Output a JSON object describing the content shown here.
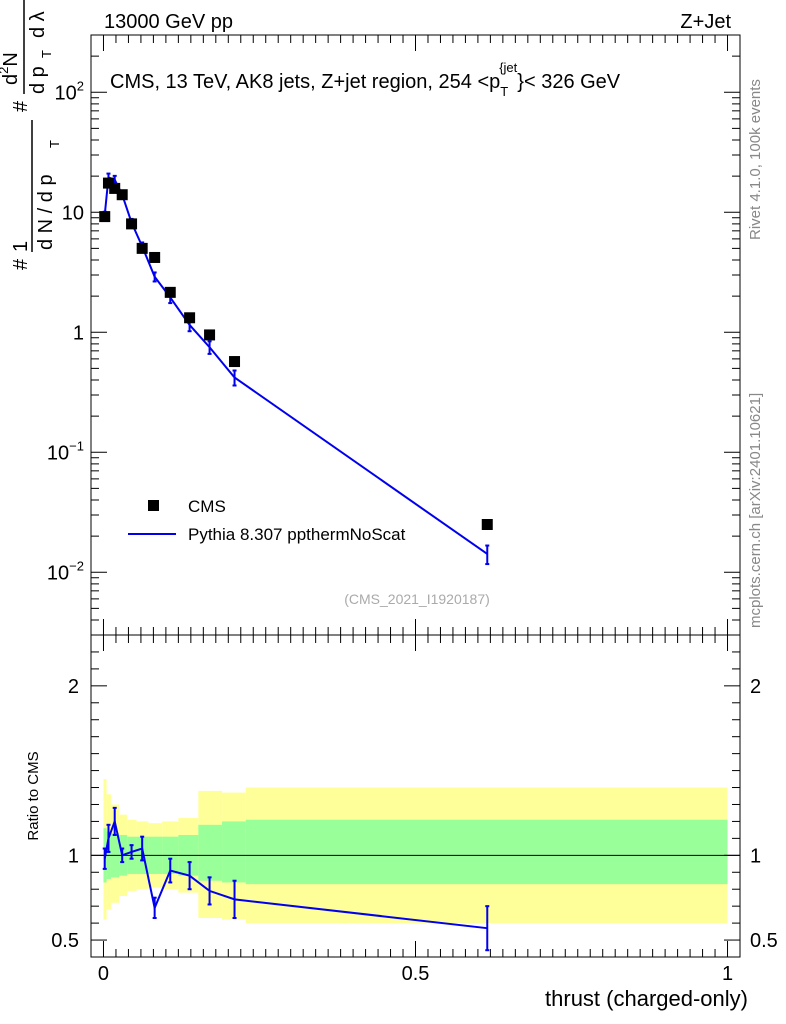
{
  "header": {
    "left_label": "13000 GeV pp",
    "right_label": "Z+Jet"
  },
  "side_labels": {
    "rivet": "Rivet 4.1.0,  100k events",
    "mcplots": "mcplots.cern.ch [arXiv:2401.10621]"
  },
  "analysis_id": "(CMS_2021_I1920187)",
  "colors": {
    "pythia": "#0000ee",
    "band_inner": "#99ff99",
    "band_outer": "#ffff99",
    "data": "#000000"
  },
  "chart_data": [
    {
      "type": "scatter",
      "title": "CMS, 13 TeV, AK8 jets, Z+jet region, 254 <p_T^{jet}< 326 GeV",
      "title_parts": {
        "main": "CMS, 13 TeV, AK8 jets, Z+jet region, 254 <p",
        "sub": "T",
        "sup": "{jet",
        "tail": "}< 326 GeV"
      },
      "ylabel": "1/(dN/dp_T) d²N/(dp_T dλ)",
      "ylabel_parts": {
        "hash": "#",
        "one": "1",
        "dn": "d N / d p",
        "d2n": "d",
        "two": "2",
        "n": "N",
        "dpt": "d p",
        "t": "T",
        "dlambda": "d λ"
      },
      "yscale": "log",
      "xlim": [
        -0.02,
        1.02
      ],
      "ylim": [
        0.003,
        300
      ],
      "y_tick_labels": [
        {
          "value": 0.01,
          "base": "10",
          "exp": "−2"
        },
        {
          "value": 0.1,
          "base": "10",
          "exp": "−1"
        },
        {
          "value": 1,
          "label": "1"
        },
        {
          "value": 10,
          "label": "10"
        },
        {
          "value": 100,
          "base": "10",
          "exp": "2"
        }
      ],
      "legend": {
        "position": "bottom-left",
        "entries": [
          "CMS",
          "Pythia 8.307 ppthermNoScat"
        ]
      },
      "series": [
        {
          "name": "CMS",
          "marker": "square",
          "x": [
            0.002,
            0.008,
            0.018,
            0.03,
            0.045,
            0.062,
            0.082,
            0.107,
            0.138,
            0.17,
            0.21,
            0.615
          ],
          "y": [
            9.2,
            17.5,
            15.8,
            14.0,
            8.0,
            5.0,
            4.2,
            2.15,
            1.32,
            0.95,
            0.57,
            0.025
          ]
        },
        {
          "name": "Pythia 8.307 ppthermNoScat",
          "marker": "line",
          "x": [
            0.002,
            0.008,
            0.018,
            0.03,
            0.045,
            0.062,
            0.082,
            0.107,
            0.138,
            0.17,
            0.21,
            0.615
          ],
          "y": [
            9.5,
            19.5,
            18.7,
            14.0,
            8.2,
            5.2,
            2.9,
            1.95,
            1.15,
            0.75,
            0.42,
            0.0142
          ],
          "yerr": [
            0.6,
            1.5,
            1.4,
            1.0,
            0.6,
            0.4,
            0.25,
            0.2,
            0.13,
            0.09,
            0.06,
            0.0025
          ]
        }
      ]
    },
    {
      "type": "line",
      "ylabel": "Ratio to CMS",
      "xlabel": "thrust (charged-only)",
      "xlim": [
        -0.02,
        1.02
      ],
      "ylim": [
        0.4,
        2.3
      ],
      "x_ticks": [
        0,
        0.5,
        1
      ],
      "x_tick_labels": [
        "0",
        "0.5",
        "1"
      ],
      "y_ticks": [
        0.5,
        1,
        2
      ],
      "y_tick_labels": [
        "0.5",
        "1",
        "2"
      ],
      "bands": [
        {
          "xlo": 0.0,
          "xhi": 0.005,
          "in_lo": 0.84,
          "in_hi": 1.16,
          "out_lo": 0.62,
          "out_hi": 1.45
        },
        {
          "xlo": 0.005,
          "xhi": 0.012,
          "in_lo": 0.86,
          "in_hi": 1.14,
          "out_lo": 0.68,
          "out_hi": 1.36
        },
        {
          "xlo": 0.012,
          "xhi": 0.025,
          "in_lo": 0.87,
          "in_hi": 1.13,
          "out_lo": 0.72,
          "out_hi": 1.3
        },
        {
          "xlo": 0.025,
          "xhi": 0.038,
          "in_lo": 0.88,
          "in_hi": 1.12,
          "out_lo": 0.76,
          "out_hi": 1.24
        },
        {
          "xlo": 0.038,
          "xhi": 0.053,
          "in_lo": 0.89,
          "in_hi": 1.11,
          "out_lo": 0.79,
          "out_hi": 1.21
        },
        {
          "xlo": 0.053,
          "xhi": 0.072,
          "in_lo": 0.89,
          "in_hi": 1.11,
          "out_lo": 0.8,
          "out_hi": 1.2
        },
        {
          "xlo": 0.072,
          "xhi": 0.094,
          "in_lo": 0.89,
          "in_hi": 1.11,
          "out_lo": 0.81,
          "out_hi": 1.19
        },
        {
          "xlo": 0.094,
          "xhi": 0.12,
          "in_lo": 0.89,
          "in_hi": 1.11,
          "out_lo": 0.8,
          "out_hi": 1.2
        },
        {
          "xlo": 0.12,
          "xhi": 0.152,
          "in_lo": 0.88,
          "in_hi": 1.12,
          "out_lo": 0.78,
          "out_hi": 1.22
        },
        {
          "xlo": 0.152,
          "xhi": 0.19,
          "in_lo": 0.85,
          "in_hi": 1.18,
          "out_lo": 0.63,
          "out_hi": 1.38
        },
        {
          "xlo": 0.19,
          "xhi": 0.228,
          "in_lo": 0.84,
          "in_hi": 1.2,
          "out_lo": 0.62,
          "out_hi": 1.37
        },
        {
          "xlo": 0.228,
          "xhi": 1.0,
          "in_lo": 0.83,
          "in_hi": 1.21,
          "out_lo": 0.6,
          "out_hi": 1.4
        }
      ],
      "series": [
        {
          "name": "Pythia 8.307 ppthermNoScat",
          "x": [
            0.002,
            0.008,
            0.018,
            0.03,
            0.045,
            0.062,
            0.082,
            0.107,
            0.138,
            0.17,
            0.21,
            0.615
          ],
          "y": [
            0.98,
            1.1,
            1.2,
            1.0,
            1.02,
            1.04,
            0.69,
            0.91,
            0.88,
            0.79,
            0.74,
            0.57
          ],
          "yerr": [
            0.06,
            0.08,
            0.08,
            0.04,
            0.04,
            0.07,
            0.06,
            0.07,
            0.08,
            0.08,
            0.11,
            0.13
          ]
        }
      ],
      "reference_line": 1.0
    }
  ]
}
